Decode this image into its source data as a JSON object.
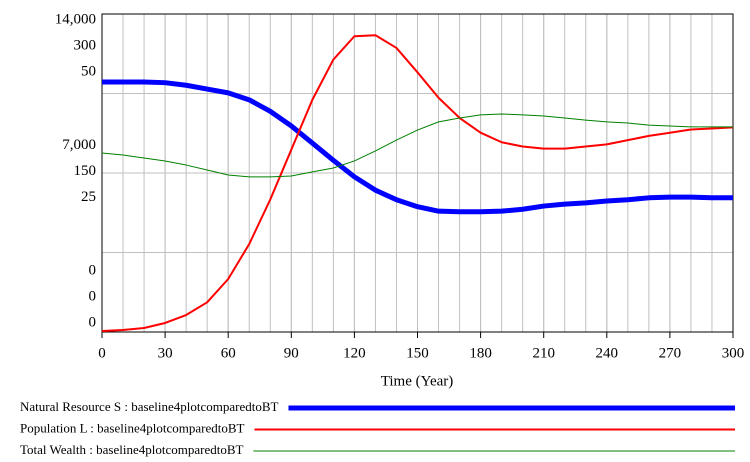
{
  "chart_data": {
    "type": "line",
    "xlabel": "Time (Year)",
    "x": [
      0,
      10,
      20,
      30,
      40,
      50,
      60,
      70,
      80,
      90,
      100,
      110,
      120,
      130,
      140,
      150,
      160,
      170,
      180,
      190,
      200,
      210,
      220,
      230,
      240,
      250,
      260,
      270,
      280,
      290,
      300
    ],
    "xlim": [
      0,
      300
    ],
    "xticks": [
      0,
      30,
      60,
      90,
      120,
      150,
      180,
      210,
      240,
      270,
      300
    ],
    "grid": true,
    "series": [
      {
        "name": "Natural Resource S : baseline4plotcomparedtoBT",
        "color": "#0000ff",
        "width": 5,
        "ylim": [
          0,
          50
        ],
        "yticks": [
          0,
          25,
          50
        ],
        "values": [
          39.3,
          39.3,
          39.3,
          39.2,
          38.8,
          38.2,
          37.6,
          36.5,
          34.7,
          32.4,
          29.7,
          27.0,
          24.4,
          22.3,
          20.8,
          19.7,
          19.0,
          18.9,
          18.9,
          19.0,
          19.3,
          19.8,
          20.1,
          20.3,
          20.6,
          20.8,
          21.1,
          21.2,
          21.2,
          21.1,
          21.1
        ]
      },
      {
        "name": "Population L : baseline4plotcomparedtoBT",
        "color": "#ff0000",
        "width": 2,
        "ylim": [
          0,
          300
        ],
        "yticks": [
          0,
          150,
          300
        ],
        "values": [
          0.9,
          1.9,
          3.8,
          8.5,
          16,
          28,
          50,
          83,
          125,
          172,
          219,
          257,
          279,
          280,
          268,
          245,
          221,
          202,
          188,
          179,
          175,
          173,
          173,
          175,
          177,
          181,
          185,
          188,
          191,
          192,
          193
        ]
      },
      {
        "name": "Total Wealth : baseline4plotcomparedtoBT",
        "color": "#008000",
        "width": 1,
        "ylim": [
          0,
          14000
        ],
        "yticks": [
          0,
          {
            "value": 7000,
            "label": "7,000"
          },
          {
            "value": 14000,
            "label": "14,000"
          }
        ],
        "values": [
          7880,
          7790,
          7660,
          7530,
          7350,
          7130,
          6910,
          6830,
          6830,
          6870,
          7050,
          7220,
          7530,
          7970,
          8450,
          8890,
          9250,
          9420,
          9560,
          9600,
          9560,
          9510,
          9420,
          9330,
          9250,
          9200,
          9110,
          9070,
          9030,
          9030,
          9030
        ]
      }
    ]
  }
}
